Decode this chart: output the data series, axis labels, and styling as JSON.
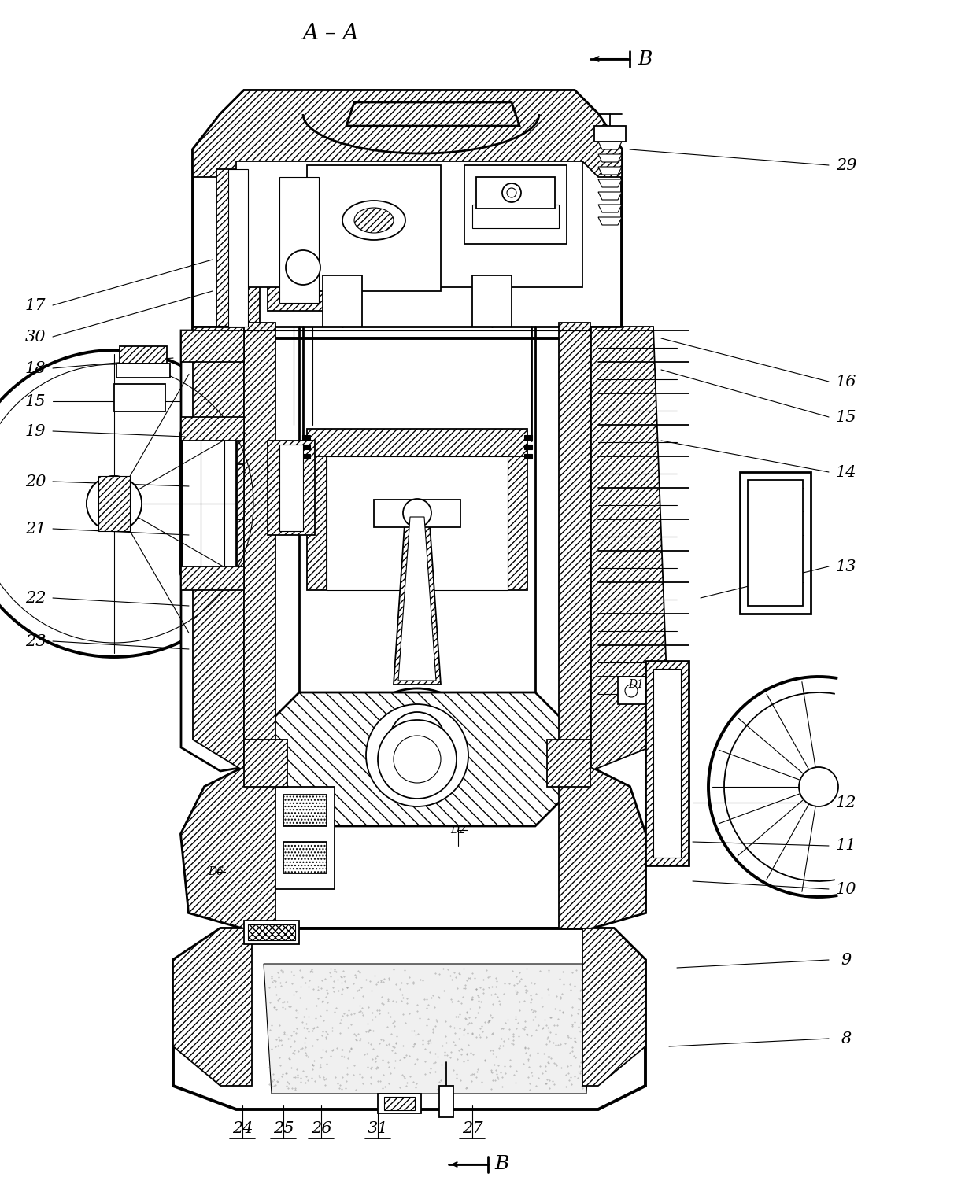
{
  "title": "A – A",
  "background": "#ffffff",
  "figsize": [
    12.4,
    15.15
  ],
  "dpi": 100,
  "labels_left": [
    [
      "17",
      45,
      388
    ],
    [
      "30",
      45,
      428
    ],
    [
      "18",
      45,
      468
    ],
    [
      "15",
      45,
      510
    ],
    [
      "19",
      45,
      548
    ],
    [
      "20",
      45,
      612
    ],
    [
      "21",
      45,
      672
    ],
    [
      "22",
      45,
      760
    ],
    [
      "23",
      45,
      815
    ]
  ],
  "labels_right": [
    [
      "29",
      1075,
      210
    ],
    [
      "16",
      1075,
      485
    ],
    [
      "15",
      1075,
      530
    ],
    [
      "14",
      1075,
      600
    ],
    [
      "13",
      1075,
      720
    ],
    [
      "12",
      1075,
      1020
    ],
    [
      "11",
      1075,
      1075
    ],
    [
      "10",
      1075,
      1130
    ],
    [
      "9",
      1075,
      1220
    ],
    [
      "8",
      1075,
      1320
    ]
  ],
  "labels_bottom": [
    [
      "24",
      308,
      1435
    ],
    [
      "25",
      360,
      1435
    ],
    [
      "26",
      408,
      1435
    ],
    [
      "31",
      480,
      1435
    ],
    [
      "27",
      600,
      1435
    ]
  ],
  "dim_labels": [
    [
      "D1",
      808,
      870
    ],
    [
      "D2",
      582,
      1055
    ],
    [
      "D6",
      274,
      1108
    ]
  ]
}
